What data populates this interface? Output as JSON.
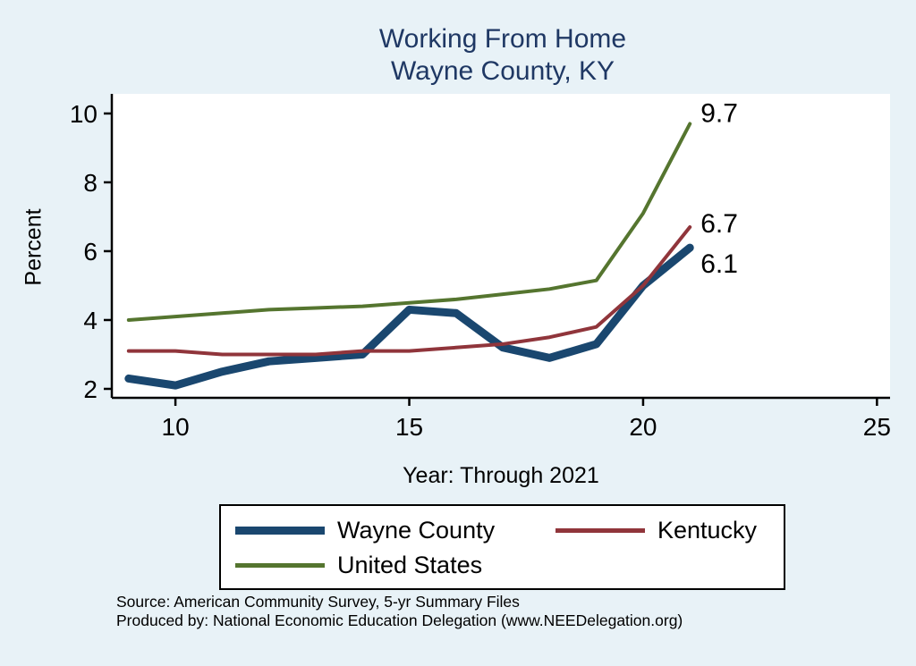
{
  "title": {
    "line1": "Working From Home",
    "line2": "Wayne County, KY"
  },
  "source": {
    "line1": "Source: American Community Survey, 5-yr Summary Files",
    "line2": "Produced by: National Economic Education Delegation (www.NEEDelegation.org)"
  },
  "colors": {
    "page_background": "#e8f2f7",
    "plot_background": "#ffffff",
    "title_text": "#1f3864",
    "axis": "#000000",
    "wayne_county": "#1a476f",
    "kentucky": "#90353b",
    "united_states": "#55752f"
  },
  "chart_data": {
    "type": "line",
    "title": "Working From Home — Wayne County, KY",
    "xlabel": "Year: Through 2021",
    "ylabel": "Percent",
    "grid": false,
    "legend_position": "bottom",
    "x": [
      9,
      10,
      11,
      12,
      13,
      14,
      15,
      16,
      17,
      18,
      19,
      20,
      21
    ],
    "x_ticks": [
      10,
      15,
      20,
      25
    ],
    "y_ticks": [
      2,
      4,
      6,
      8,
      10
    ],
    "xlim": [
      8.64,
      25.28
    ],
    "ylim": [
      1.74,
      10.57
    ],
    "series": [
      {
        "name": "Wayne County",
        "color": "#1a476f",
        "width": 9,
        "end_label": "6.1",
        "end_label_dy": 18,
        "values": [
          2.3,
          2.1,
          2.5,
          2.8,
          2.9,
          3.0,
          4.3,
          4.2,
          3.2,
          2.9,
          3.3,
          5.0,
          6.1
        ]
      },
      {
        "name": "Kentucky",
        "color": "#90353b",
        "width": 4,
        "end_label": "6.7",
        "end_label_dy": -4,
        "values": [
          3.1,
          3.1,
          3.0,
          3.0,
          3.0,
          3.1,
          3.1,
          3.2,
          3.3,
          3.5,
          3.8,
          5.0,
          6.7
        ]
      },
      {
        "name": "United States",
        "color": "#55752f",
        "width": 4,
        "end_label": "9.7",
        "end_label_dy": -12,
        "values": [
          4.0,
          4.1,
          4.2,
          4.3,
          4.35,
          4.4,
          4.5,
          4.6,
          4.75,
          4.9,
          5.15,
          7.1,
          9.7
        ]
      }
    ]
  }
}
